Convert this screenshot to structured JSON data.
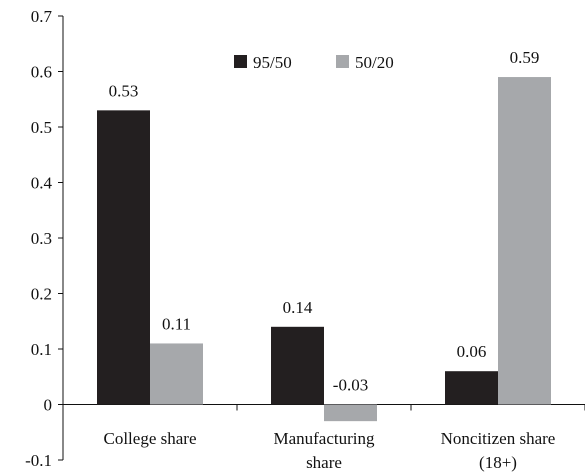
{
  "chart_data": {
    "type": "bar",
    "title": "",
    "xlabel": "",
    "ylabel": "",
    "categories": [
      [
        "College share"
      ],
      [
        "Manufacturing",
        "share"
      ],
      [
        "Noncitizen share",
        "(18+)"
      ]
    ],
    "series": [
      {
        "name": "95/50",
        "values": [
          0.53,
          0.14,
          0.06
        ],
        "color": "#231f20"
      },
      {
        "name": "50/20",
        "values": [
          0.11,
          -0.03,
          0.59
        ],
        "color": "#a6a8ab"
      }
    ],
    "data_labels": [
      [
        "0.53",
        "0.14",
        "0.06"
      ],
      [
        "0.11",
        "-0.03",
        "0.59"
      ]
    ],
    "yticks": [
      "0.7",
      "0.6",
      "0.5",
      "0.4",
      "0.3",
      "0.2",
      "0.1",
      "0",
      "-0.1"
    ],
    "ylim": [
      -0.1,
      0.7
    ],
    "grid": false,
    "legend_position": "top-center"
  }
}
